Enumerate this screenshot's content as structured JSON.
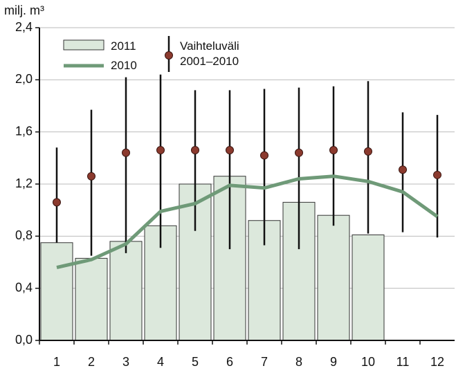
{
  "chart_data": {
    "type": "bar",
    "ylabel": "milj. m³",
    "categories": [
      "1",
      "2",
      "3",
      "4",
      "5",
      "6",
      "7",
      "8",
      "9",
      "10",
      "11",
      "12"
    ],
    "ylim": [
      0,
      2.4
    ],
    "yticks": [
      {
        "value": 0,
        "label": "0,0"
      },
      {
        "value": 0.4,
        "label": "0,4"
      },
      {
        "value": 0.8,
        "label": "0,8"
      },
      {
        "value": 1.2,
        "label": "1,2"
      },
      {
        "value": 1.6,
        "label": "1,6"
      },
      {
        "value": 2.0,
        "label": "2,0"
      },
      {
        "value": 2.4,
        "label": "2,4"
      }
    ],
    "grid": true,
    "series": [
      {
        "name": "2011",
        "type": "bar",
        "color": "#dce8dc",
        "values": [
          0.75,
          0.63,
          0.76,
          0.88,
          1.2,
          1.26,
          0.92,
          1.06,
          0.96,
          0.81,
          null,
          null
        ]
      },
      {
        "name": "2010",
        "type": "line",
        "color": "#6f9a78",
        "values": [
          0.56,
          0.62,
          0.74,
          0.99,
          1.05,
          1.19,
          1.17,
          1.24,
          1.26,
          1.22,
          1.14,
          0.95
        ]
      },
      {
        "name": "Vaihteluväli 2001–2010",
        "type": "range",
        "color": "#8b3a2e",
        "values": [
          1.06,
          1.26,
          1.44,
          1.46,
          1.46,
          1.46,
          1.42,
          1.44,
          1.46,
          1.45,
          1.31,
          1.27
        ],
        "low": [
          0.75,
          0.65,
          0.67,
          0.71,
          0.84,
          0.7,
          0.73,
          0.7,
          0.88,
          0.82,
          0.83,
          0.79
        ],
        "high": [
          1.48,
          1.77,
          2.02,
          2.04,
          1.92,
          1.92,
          1.93,
          1.94,
          1.95,
          1.99,
          1.75,
          1.73
        ]
      }
    ]
  }
}
